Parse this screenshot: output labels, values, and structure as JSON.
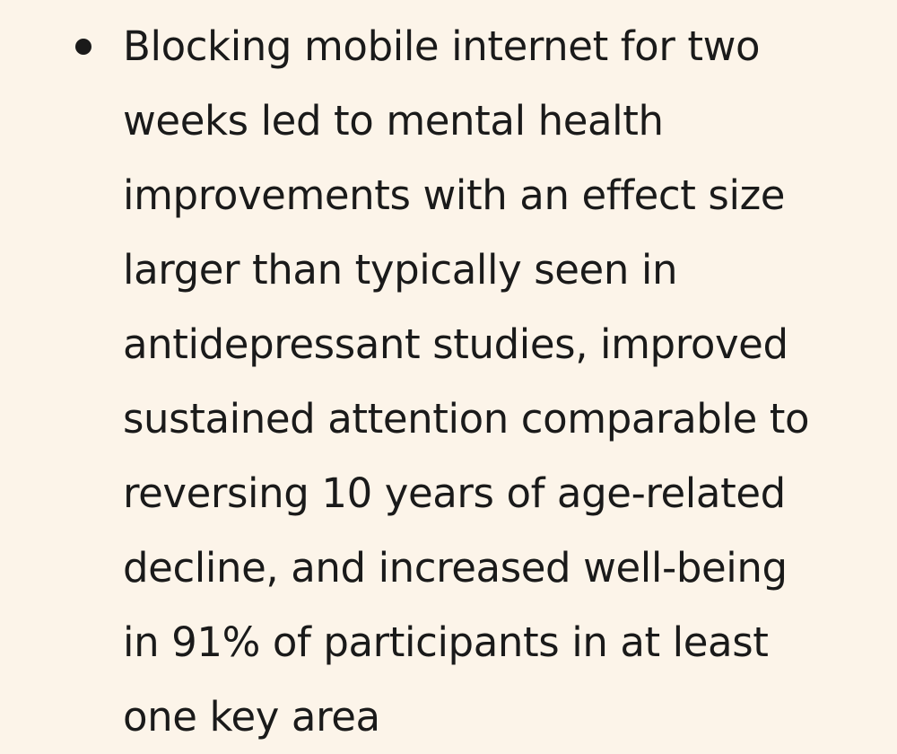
{
  "document": {
    "bullet": {
      "lines": [
        "Blocking mobile internet for two",
        "weeks led to mental health",
        "improvements with an effect size",
        "larger than typically seen in",
        "antidepressant studies, improved",
        "sustained attention comparable to",
        "reversing 10 years of age-related",
        "decline, and increased well-being",
        "in 91% of participants in at least",
        "one key area"
      ]
    }
  }
}
